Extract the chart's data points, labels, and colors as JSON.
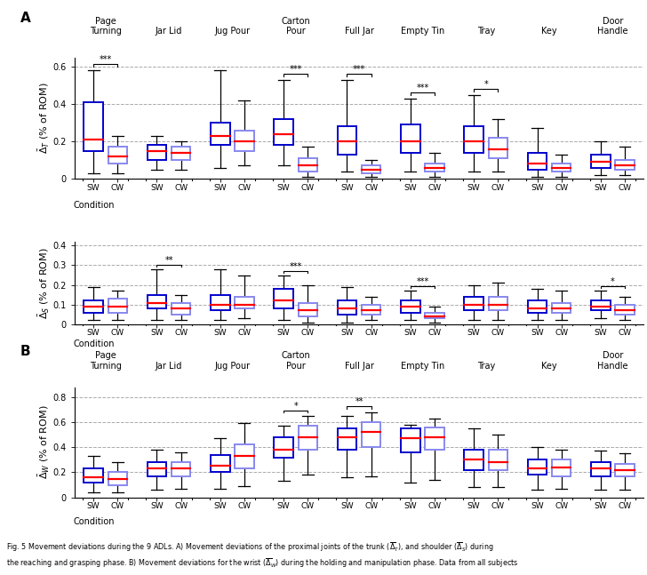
{
  "tasks": [
    "Page\nTurning",
    "Jar Lid",
    "Jug Pour",
    "Carton\nPour",
    "Full Jar",
    "Empty Tin",
    "Tray",
    "Key",
    "Door\nHandle"
  ],
  "sw_color": "#0000CC",
  "cw_color": "#8888EE",
  "median_color": "#FF0000",
  "whisker_color": "#000000",
  "grid_color": "#AAAAAA",
  "row1_ylabel": "$\\bar{\\Delta}_T$ (% of ROM)",
  "row2_ylabel": "$\\bar{\\Delta}_S$ (% of ROM)",
  "row3_ylabel": "$\\bar{\\Delta}_W$ (% of ROM)",
  "row1_ylim": [
    0,
    0.65
  ],
  "row2_ylim": [
    0,
    0.42
  ],
  "row3_ylim": [
    0,
    0.88
  ],
  "row1_yticks": [
    0,
    0.2,
    0.4,
    0.6
  ],
  "row2_yticks": [
    0,
    0.1,
    0.2,
    0.3,
    0.4
  ],
  "row3_yticks": [
    0,
    0.2,
    0.4,
    0.6,
    0.8
  ],
  "row1_gridlines": [
    0.2,
    0.4,
    0.6
  ],
  "row2_gridlines": [
    0.1,
    0.2,
    0.3,
    0.4
  ],
  "row3_gridlines": [
    0.2,
    0.4,
    0.6,
    0.8
  ],
  "row1_boxes": [
    {
      "sw": {
        "q1": 0.15,
        "med": 0.21,
        "q3": 0.41,
        "wlo": 0.03,
        "whi": 0.58
      },
      "cw": {
        "q1": 0.08,
        "med": 0.12,
        "q3": 0.17,
        "wlo": 0.03,
        "whi": 0.23
      }
    },
    {
      "sw": {
        "q1": 0.1,
        "med": 0.15,
        "q3": 0.18,
        "wlo": 0.05,
        "whi": 0.23
      },
      "cw": {
        "q1": 0.1,
        "med": 0.14,
        "q3": 0.17,
        "wlo": 0.05,
        "whi": 0.2
      }
    },
    {
      "sw": {
        "q1": 0.18,
        "med": 0.23,
        "q3": 0.3,
        "wlo": 0.06,
        "whi": 0.58
      },
      "cw": {
        "q1": 0.15,
        "med": 0.2,
        "q3": 0.26,
        "wlo": 0.07,
        "whi": 0.42
      }
    },
    {
      "sw": {
        "q1": 0.18,
        "med": 0.24,
        "q3": 0.32,
        "wlo": 0.07,
        "whi": 0.53
      },
      "cw": {
        "q1": 0.04,
        "med": 0.07,
        "q3": 0.11,
        "wlo": 0.01,
        "whi": 0.17
      }
    },
    {
      "sw": {
        "q1": 0.13,
        "med": 0.2,
        "q3": 0.28,
        "wlo": 0.04,
        "whi": 0.53
      },
      "cw": {
        "q1": 0.03,
        "med": 0.05,
        "q3": 0.07,
        "wlo": 0.01,
        "whi": 0.1
      }
    },
    {
      "sw": {
        "q1": 0.14,
        "med": 0.2,
        "q3": 0.29,
        "wlo": 0.04,
        "whi": 0.43
      },
      "cw": {
        "q1": 0.04,
        "med": 0.06,
        "q3": 0.08,
        "wlo": 0.01,
        "whi": 0.14
      }
    },
    {
      "sw": {
        "q1": 0.14,
        "med": 0.2,
        "q3": 0.28,
        "wlo": 0.04,
        "whi": 0.45
      },
      "cw": {
        "q1": 0.11,
        "med": 0.16,
        "q3": 0.22,
        "wlo": 0.04,
        "whi": 0.32
      }
    },
    {
      "sw": {
        "q1": 0.05,
        "med": 0.08,
        "q3": 0.14,
        "wlo": 0.01,
        "whi": 0.27
      },
      "cw": {
        "q1": 0.04,
        "med": 0.06,
        "q3": 0.08,
        "wlo": 0.01,
        "whi": 0.13
      }
    },
    {
      "sw": {
        "q1": 0.06,
        "med": 0.09,
        "q3": 0.13,
        "wlo": 0.02,
        "whi": 0.2
      },
      "cw": {
        "q1": 0.05,
        "med": 0.07,
        "q3": 0.1,
        "wlo": 0.02,
        "whi": 0.17
      }
    }
  ],
  "row2_boxes": [
    {
      "sw": {
        "q1": 0.06,
        "med": 0.09,
        "q3": 0.12,
        "wlo": 0.02,
        "whi": 0.19
      },
      "cw": {
        "q1": 0.06,
        "med": 0.09,
        "q3": 0.13,
        "wlo": 0.02,
        "whi": 0.17
      }
    },
    {
      "sw": {
        "q1": 0.08,
        "med": 0.11,
        "q3": 0.15,
        "wlo": 0.02,
        "whi": 0.28
      },
      "cw": {
        "q1": 0.05,
        "med": 0.08,
        "q3": 0.11,
        "wlo": 0.02,
        "whi": 0.15
      }
    },
    {
      "sw": {
        "q1": 0.07,
        "med": 0.1,
        "q3": 0.15,
        "wlo": 0.02,
        "whi": 0.28
      },
      "cw": {
        "q1": 0.08,
        "med": 0.1,
        "q3": 0.14,
        "wlo": 0.03,
        "whi": 0.25
      }
    },
    {
      "sw": {
        "q1": 0.08,
        "med": 0.12,
        "q3": 0.18,
        "wlo": 0.02,
        "whi": 0.25
      },
      "cw": {
        "q1": 0.04,
        "med": 0.07,
        "q3": 0.11,
        "wlo": 0.01,
        "whi": 0.2
      }
    },
    {
      "sw": {
        "q1": 0.05,
        "med": 0.08,
        "q3": 0.12,
        "wlo": 0.01,
        "whi": 0.19
      },
      "cw": {
        "q1": 0.05,
        "med": 0.07,
        "q3": 0.1,
        "wlo": 0.02,
        "whi": 0.14
      }
    },
    {
      "sw": {
        "q1": 0.06,
        "med": 0.09,
        "q3": 0.12,
        "wlo": 0.02,
        "whi": 0.17
      },
      "cw": {
        "q1": 0.03,
        "med": 0.04,
        "q3": 0.06,
        "wlo": 0.01,
        "whi": 0.09
      }
    },
    {
      "sw": {
        "q1": 0.07,
        "med": 0.1,
        "q3": 0.14,
        "wlo": 0.02,
        "whi": 0.2
      },
      "cw": {
        "q1": 0.07,
        "med": 0.1,
        "q3": 0.14,
        "wlo": 0.02,
        "whi": 0.21
      }
    },
    {
      "sw": {
        "q1": 0.06,
        "med": 0.08,
        "q3": 0.12,
        "wlo": 0.02,
        "whi": 0.18
      },
      "cw": {
        "q1": 0.06,
        "med": 0.08,
        "q3": 0.11,
        "wlo": 0.02,
        "whi": 0.17
      }
    },
    {
      "sw": {
        "q1": 0.07,
        "med": 0.09,
        "q3": 0.12,
        "wlo": 0.03,
        "whi": 0.17
      },
      "cw": {
        "q1": 0.05,
        "med": 0.07,
        "q3": 0.1,
        "wlo": 0.02,
        "whi": 0.14
      }
    }
  ],
  "row3_boxes": [
    {
      "sw": {
        "q1": 0.12,
        "med": 0.16,
        "q3": 0.23,
        "wlo": 0.04,
        "whi": 0.33
      },
      "cw": {
        "q1": 0.1,
        "med": 0.15,
        "q3": 0.2,
        "wlo": 0.04,
        "whi": 0.28
      }
    },
    {
      "sw": {
        "q1": 0.17,
        "med": 0.23,
        "q3": 0.28,
        "wlo": 0.06,
        "whi": 0.38
      },
      "cw": {
        "q1": 0.17,
        "med": 0.23,
        "q3": 0.28,
        "wlo": 0.07,
        "whi": 0.36
      }
    },
    {
      "sw": {
        "q1": 0.2,
        "med": 0.25,
        "q3": 0.34,
        "wlo": 0.07,
        "whi": 0.47
      },
      "cw": {
        "q1": 0.23,
        "med": 0.33,
        "q3": 0.42,
        "wlo": 0.09,
        "whi": 0.59
      }
    },
    {
      "sw": {
        "q1": 0.32,
        "med": 0.38,
        "q3": 0.48,
        "wlo": 0.13,
        "whi": 0.57
      },
      "cw": {
        "q1": 0.38,
        "med": 0.48,
        "q3": 0.57,
        "wlo": 0.18,
        "whi": 0.65
      }
    },
    {
      "sw": {
        "q1": 0.38,
        "med": 0.48,
        "q3": 0.55,
        "wlo": 0.16,
        "whi": 0.65
      },
      "cw": {
        "q1": 0.4,
        "med": 0.52,
        "q3": 0.6,
        "wlo": 0.17,
        "whi": 0.68
      }
    },
    {
      "sw": {
        "q1": 0.36,
        "med": 0.47,
        "q3": 0.55,
        "wlo": 0.12,
        "whi": 0.58
      },
      "cw": {
        "q1": 0.38,
        "med": 0.48,
        "q3": 0.56,
        "wlo": 0.14,
        "whi": 0.63
      }
    },
    {
      "sw": {
        "q1": 0.22,
        "med": 0.3,
        "q3": 0.38,
        "wlo": 0.08,
        "whi": 0.55
      },
      "cw": {
        "q1": 0.22,
        "med": 0.28,
        "q3": 0.38,
        "wlo": 0.08,
        "whi": 0.5
      }
    },
    {
      "sw": {
        "q1": 0.18,
        "med": 0.23,
        "q3": 0.3,
        "wlo": 0.06,
        "whi": 0.4
      },
      "cw": {
        "q1": 0.17,
        "med": 0.24,
        "q3": 0.3,
        "wlo": 0.07,
        "whi": 0.38
      }
    },
    {
      "sw": {
        "q1": 0.17,
        "med": 0.23,
        "q3": 0.28,
        "wlo": 0.06,
        "whi": 0.37
      },
      "cw": {
        "q1": 0.17,
        "med": 0.22,
        "q3": 0.27,
        "wlo": 0.06,
        "whi": 0.35
      }
    }
  ],
  "row1_sig": [
    {
      "task": 0,
      "sig": "***"
    },
    {
      "task": 3,
      "sig": "***"
    },
    {
      "task": 4,
      "sig": "***"
    },
    {
      "task": 5,
      "sig": "***"
    },
    {
      "task": 6,
      "sig": "*"
    }
  ],
  "row2_sig": [
    {
      "task": 1,
      "sig": "**"
    },
    {
      "task": 3,
      "sig": "***"
    },
    {
      "task": 5,
      "sig": "***"
    },
    {
      "task": 8,
      "sig": "*"
    }
  ],
  "row3_sig": [
    {
      "task": 3,
      "sig": "*"
    },
    {
      "task": 4,
      "sig": "**"
    }
  ]
}
